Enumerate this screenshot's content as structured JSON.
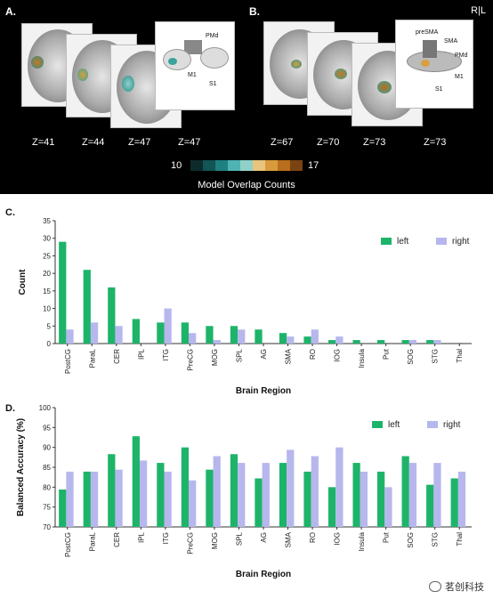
{
  "panelA": {
    "letter": "A.",
    "z_labels": [
      "Z=41",
      "Z=44",
      "Z=47",
      "Z=47"
    ],
    "annotations": [
      "PMd",
      "M1",
      "S1"
    ]
  },
  "panelB": {
    "letter": "B.",
    "z_labels": [
      "Z=67",
      "Z=70",
      "Z=73",
      "Z=73"
    ],
    "annotations": [
      "preSMA",
      "SMA",
      "PMd",
      "M1",
      "S1"
    ],
    "orientation": "R|L"
  },
  "colorbar": {
    "min": "10",
    "max": "17",
    "title": "Model Overlap Counts",
    "colors": [
      "#0d2b2b",
      "#135454",
      "#1f8080",
      "#4fb3b3",
      "#8fd1c8",
      "#e8c47e",
      "#d99a3c",
      "#b86e1c",
      "#7a4312"
    ]
  },
  "chart_data": [
    {
      "type": "bar",
      "letter": "C.",
      "categories": [
        "PostCG",
        "ParaL",
        "CER",
        "IPL",
        "ITG",
        "PreCG",
        "MOG",
        "SPL",
        "AG",
        "SMA",
        "RO",
        "IOG",
        "Insula",
        "Put",
        "SOG",
        "STG",
        "Thal"
      ],
      "series": [
        {
          "name": "left",
          "color": "#1db46a",
          "values": [
            29,
            21,
            16,
            7,
            6,
            6,
            5,
            5,
            4,
            3,
            2,
            1,
            1,
            1,
            1,
            1,
            0
          ]
        },
        {
          "name": "right",
          "color": "#b7b7ee",
          "values": [
            4,
            6,
            5,
            0,
            10,
            3,
            1,
            4,
            0,
            2,
            4,
            2,
            0,
            0,
            1,
            1,
            0
          ]
        }
      ],
      "xlabel": "Brain Region",
      "ylabel": "Count",
      "ylim": [
        0,
        35
      ],
      "yticks": [
        0,
        5,
        10,
        15,
        20,
        25,
        30,
        35
      ],
      "legend": "top-right"
    },
    {
      "type": "bar",
      "letter": "D.",
      "categories": [
        "PostCG",
        "ParaL",
        "CER",
        "IPL",
        "ITG",
        "PreCG",
        "MOG",
        "SPL",
        "AG",
        "SMA",
        "RO",
        "IOG",
        "Insula",
        "Put",
        "SOG",
        "STG",
        "Thal"
      ],
      "series": [
        {
          "name": "left",
          "color": "#1db46a",
          "values": [
            79.4,
            83.9,
            88.3,
            92.8,
            86.1,
            90.0,
            84.4,
            88.3,
            82.2,
            86.1,
            83.9,
            80.0,
            86.1,
            83.9,
            87.8,
            80.6,
            82.2
          ]
        },
        {
          "name": "right",
          "color": "#b7b7ee",
          "values": [
            83.9,
            83.9,
            84.4,
            86.7,
            83.9,
            81.7,
            87.8,
            86.1,
            86.1,
            89.4,
            87.8,
            90.0,
            83.9,
            80.0,
            86.1,
            86.1,
            83.9
          ]
        }
      ],
      "xlabel": "Brain  Region",
      "ylabel": "Balanced Accuracy  (%)",
      "ylim": [
        70,
        100
      ],
      "yticks": [
        70,
        75,
        80,
        85,
        90,
        95,
        100
      ],
      "legend": "top-right"
    }
  ],
  "watermark": "茗创科技"
}
